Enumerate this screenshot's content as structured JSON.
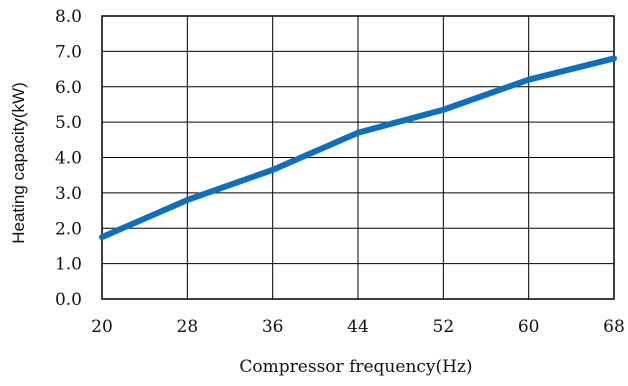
{
  "chart_data": {
    "type": "line",
    "title": "",
    "xlabel": "Compressor frequency(Hz)",
    "ylabel": "Heating capacity(kW)",
    "x": [
      20,
      28,
      36,
      44,
      52,
      60,
      68
    ],
    "xlim": [
      20,
      68
    ],
    "ylim": [
      0,
      8
    ],
    "xticks": [
      "20",
      "28",
      "36",
      "44",
      "52",
      "60",
      "68"
    ],
    "yticks": [
      "0.0",
      "1.0",
      "2.0",
      "3.0",
      "4.0",
      "5.0",
      "6.0",
      "7.0",
      "8.0"
    ],
    "grid": true,
    "legend": "none",
    "series": [
      {
        "values": [
          1.75,
          2.8,
          3.65,
          4.7,
          5.35,
          6.2,
          6.8
        ],
        "color": "#0f6fbf"
      }
    ],
    "colors": {
      "grid": "#000000",
      "axis": "#000000",
      "line": "#0f6fbf"
    }
  }
}
